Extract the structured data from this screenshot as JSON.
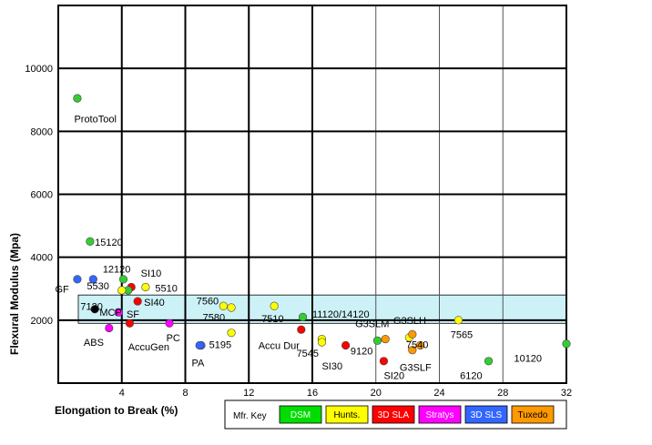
{
  "chart_data": {
    "type": "scatter",
    "xlabel": "Elongation to Break (%)",
    "ylabel": "Flexural Modulus (Mpa)",
    "xlim": [
      0,
      32
    ],
    "ylim": [
      0,
      12000
    ],
    "x_ticks": [
      4,
      8,
      12,
      16,
      20,
      24,
      28,
      32
    ],
    "x_tick_labels": [
      "4",
      "8",
      "12",
      "16",
      "20",
      "24",
      "28",
      "32"
    ],
    "y_ticks": [
      2000,
      4000,
      6000,
      8000,
      10000
    ],
    "y_tick_labels": [
      "2000",
      "4000",
      "6000",
      "8000",
      "10000"
    ],
    "grid": true,
    "highlight_band": {
      "y_from": 1900,
      "y_to": 2800,
      "color": "#ccf2f8"
    },
    "legend": {
      "title": "Mfr. Key",
      "placement": "bottom",
      "entries": [
        {
          "label": "DSM",
          "color": "#00dd00",
          "text_color": "#ffffff"
        },
        {
          "label": "Hunts.",
          "color": "#ffff00",
          "text_color": "#000000"
        },
        {
          "label": "3D SLA",
          "color": "#ff0000",
          "text_color": "#ffffff"
        },
        {
          "label": "Stratys",
          "color": "#ff00ff",
          "text_color": "#ffffff"
        },
        {
          "label": "3D SLS",
          "color": "#3366ff",
          "text_color": "#ffffff"
        },
        {
          "label": "Tuxedo",
          "color": "#ff9900",
          "text_color": "#000000"
        }
      ]
    },
    "points": [
      {
        "x": 1.2,
        "y": 9050,
        "label": "ProtoTool",
        "color": "#33cc33",
        "lx": -0.2,
        "ly": -650
      },
      {
        "x": 2.0,
        "y": 4500,
        "label": "15120",
        "color": "#33cc33",
        "lx": 0.3,
        "ly": -20
      },
      {
        "x": 2.2,
        "y": 3300,
        "label": "12120",
        "color": "#3366ff",
        "lx": 0.6,
        "ly": 330
      },
      {
        "x": 1.2,
        "y": 3300,
        "label": "GF",
        "color": "#3366ff",
        "lx": -1.4,
        "ly": -300
      },
      {
        "x": 4.1,
        "y": 3300,
        "label": "5530",
        "color": "#33cc33",
        "lx": -2.3,
        "ly": -200
      },
      {
        "x": 4.6,
        "y": 3050,
        "label": "SI10",
        "color": "#ff0000",
        "lx": 0.6,
        "ly": 450
      },
      {
        "x": 5.5,
        "y": 3050,
        "label": "5510",
        "color": "#ffff00",
        "lx": 0.6,
        "ly": -30
      },
      {
        "x": 4.4,
        "y": 2950,
        "label": "7120",
        "color": "#33cc33",
        "lx": -3.0,
        "ly": -500
      },
      {
        "x": 4.0,
        "y": 2950,
        "label": "",
        "color": "#ffff00",
        "lx": 0,
        "ly": 0
      },
      {
        "x": 5.0,
        "y": 2600,
        "label": "SI40",
        "color": "#ff0000",
        "lx": 0.4,
        "ly": -20
      },
      {
        "x": 2.3,
        "y": 2350,
        "label": "MCP",
        "color": "#000000",
        "lx": 0.3,
        "ly": -100
      },
      {
        "x": 3.8,
        "y": 2250,
        "label": "SF",
        "color": "#ff00ff",
        "lx": 0.5,
        "ly": -50
      },
      {
        "x": 3.2,
        "y": 1750,
        "label": "ABS",
        "color": "#ff00ff",
        "lx": -1.6,
        "ly": -450
      },
      {
        "x": 4.5,
        "y": 1900,
        "label": "AccuGen",
        "color": "#ff0000",
        "lx": -0.1,
        "ly": -750
      },
      {
        "x": 7.0,
        "y": 1900,
        "label": "PC",
        "color": "#ff00ff",
        "lx": -0.2,
        "ly": -450
      },
      {
        "x": 9.0,
        "y": 1200,
        "label": "5195",
        "color": "#3366ff",
        "lx": 0.5,
        "ly": 30
      },
      {
        "x": 8.9,
        "y": 1200,
        "label": "PA",
        "color": "#3366ff",
        "lx": -0.5,
        "ly": -550
      },
      {
        "x": 10.9,
        "y": 1600,
        "label": "",
        "color": "#ffff00",
        "lx": 0,
        "ly": 0
      },
      {
        "x": 10.4,
        "y": 2450,
        "label": "7560",
        "color": "#ffff00",
        "lx": -1.7,
        "ly": 170
      },
      {
        "x": 10.9,
        "y": 2400,
        "label": "7580",
        "color": "#ffff00",
        "lx": -1.8,
        "ly": -300
      },
      {
        "x": 13.6,
        "y": 2450,
        "label": "7510",
        "color": "#ffff00",
        "lx": -0.8,
        "ly": -400
      },
      {
        "x": 15.4,
        "y": 2100,
        "label": "11120/14120",
        "color": "#33cc33",
        "lx": 0.6,
        "ly": 100
      },
      {
        "x": 15.3,
        "y": 1700,
        "label": "Accu Dur",
        "color": "#ff0000",
        "lx": -2.7,
        "ly": -500
      },
      {
        "x": 16.6,
        "y": 1400,
        "label": "7545",
        "color": "#ffff00",
        "lx": -1.6,
        "ly": -450
      },
      {
        "x": 16.6,
        "y": 1300,
        "label": "SI30",
        "color": "#ffff00",
        "lx": 0.0,
        "ly": -750
      },
      {
        "x": 18.1,
        "y": 1200,
        "label": "9120",
        "color": "#ff0000",
        "lx": 0.3,
        "ly": -180
      },
      {
        "x": 20.1,
        "y": 1350,
        "label": "G3SLM",
        "color": "#33cc33",
        "lx": -1.4,
        "ly": 550
      },
      {
        "x": 20.6,
        "y": 1400,
        "label": "",
        "color": "#ff9900",
        "lx": 0,
        "ly": 0
      },
      {
        "x": 20.5,
        "y": 700,
        "label": "SI20",
        "color": "#ff0000",
        "lx": 0.0,
        "ly": -450
      },
      {
        "x": 22.1,
        "y": 1450,
        "label": "",
        "color": "#ffff00",
        "lx": 0,
        "ly": 0
      },
      {
        "x": 22.3,
        "y": 1550,
        "label": "G3SLH",
        "color": "#ff9900",
        "lx": -1.2,
        "ly": 450
      },
      {
        "x": 22.3,
        "y": 1050,
        "label": "G3SLF",
        "color": "#ff9900",
        "lx": -0.8,
        "ly": -550
      },
      {
        "x": 22.8,
        "y": 1200,
        "label": "7540",
        "color": "#ff9900",
        "lx": -0.9,
        "ly": 30
      },
      {
        "x": 25.2,
        "y": 2000,
        "label": "7565",
        "color": "#ffff00",
        "lx": -0.5,
        "ly": -450
      },
      {
        "x": 27.1,
        "y": 700,
        "label": "6120",
        "color": "#33cc33",
        "lx": -1.8,
        "ly": -450
      },
      {
        "x": 32.0,
        "y": 1250,
        "label": "10120",
        "color": "#33cc33",
        "lx": -3.3,
        "ly": -450
      }
    ]
  }
}
